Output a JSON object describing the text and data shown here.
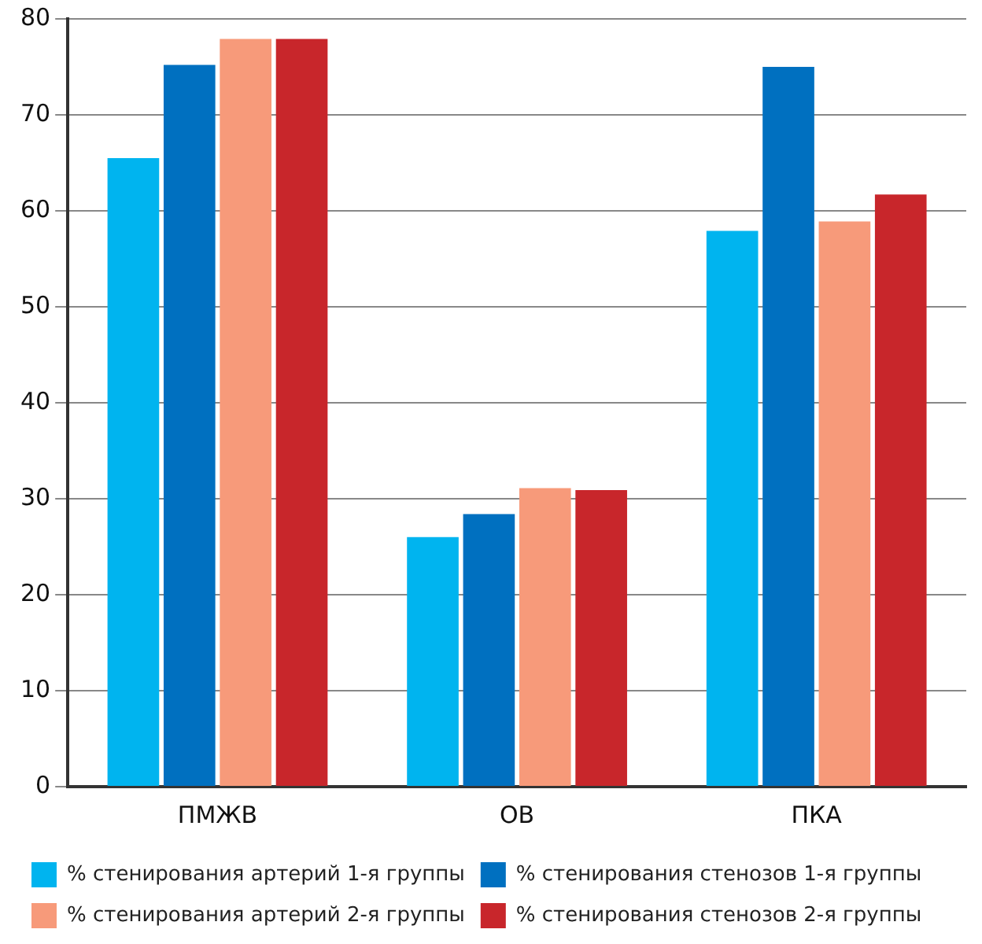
{
  "chart_data": {
    "type": "bar",
    "categories": [
      "ПМЖВ",
      "ОВ",
      "ПКА"
    ],
    "series": [
      {
        "name": "% стенирования артерий 1-я группы",
        "color": "#00b4ef",
        "values": [
          65.5,
          26.0,
          57.9
        ]
      },
      {
        "name": "% стенирования стенозов 1-я группы",
        "color": "#0070c0",
        "values": [
          75.2,
          28.4,
          75.0
        ]
      },
      {
        "name": "% стенирования артерий 2-я группы",
        "color": "#f79a7a",
        "values": [
          77.9,
          31.1,
          58.9
        ]
      },
      {
        "name": "% стенирования стенозов 2-я группы",
        "color": "#c8262b",
        "values": [
          77.9,
          30.9,
          61.7
        ]
      }
    ],
    "ylim": [
      0,
      80
    ],
    "yticks": [
      0,
      10,
      20,
      30,
      40,
      50,
      60,
      70,
      80
    ],
    "grid": "y",
    "legend": "bottom"
  }
}
